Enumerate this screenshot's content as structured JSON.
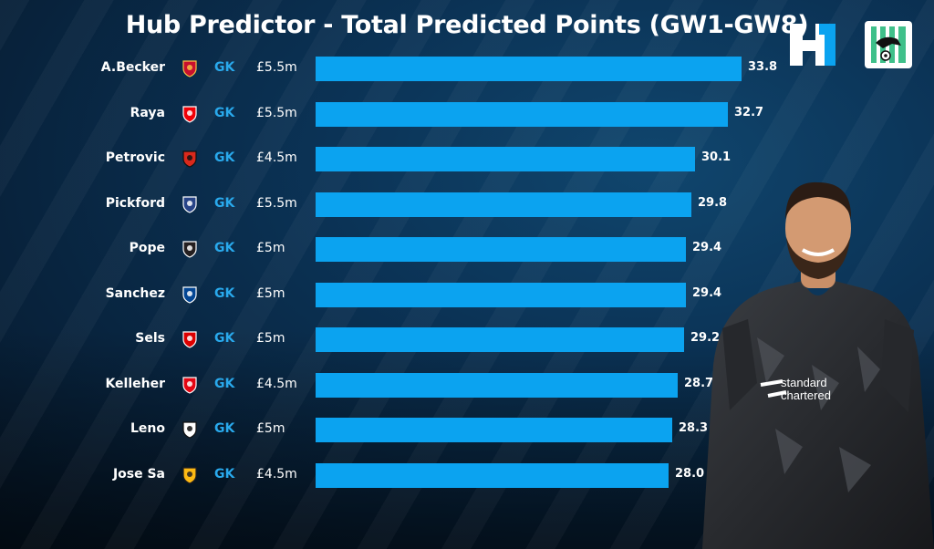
{
  "title": "Hub Predictor - Total Predicted Points (GW1-GW8)",
  "colors": {
    "bar": "#0ba3f0",
    "position_label": "#29a9ec",
    "background": "#0b3356"
  },
  "chart_data": {
    "type": "bar",
    "orientation": "horizontal",
    "title": "Hub Predictor - Total Predicted Points (GW1-GW8)",
    "categories": [
      "A.Becker",
      "Raya",
      "Petrovic",
      "Pickford",
      "Pope",
      "Sanchez",
      "Sels",
      "Kelleher",
      "Leno",
      "Jose Sa"
    ],
    "positions": [
      "GK",
      "GK",
      "GK",
      "GK",
      "GK",
      "GK",
      "GK",
      "GK",
      "GK",
      "GK"
    ],
    "prices": [
      "£5.5m",
      "£5.5m",
      "£4.5m",
      "£5.5m",
      "£5m",
      "£5m",
      "£5m",
      "£4.5m",
      "£5m",
      "£4.5m"
    ],
    "clubs": [
      "liverpool-crest-icon",
      "arsenal-crest-icon",
      "bournemouth-crest-icon",
      "everton-crest-icon",
      "newcastle-crest-icon",
      "chelsea-crest-icon",
      "nottingham-forest-crest-icon",
      "brentford-crest-icon",
      "fulham-crest-icon",
      "wolves-crest-icon"
    ],
    "values": [
      33.8,
      32.7,
      30.1,
      29.8,
      29.4,
      29.4,
      29.2,
      28.7,
      28.3,
      28.0
    ],
    "value_labels": [
      "33.8",
      "32.7",
      "30.1",
      "29.8",
      "29.4",
      "29.4",
      "29.2",
      "28.7",
      "28.3",
      "28.0"
    ],
    "xlim": [
      0,
      34
    ],
    "grid": false,
    "legend": "none"
  }
}
